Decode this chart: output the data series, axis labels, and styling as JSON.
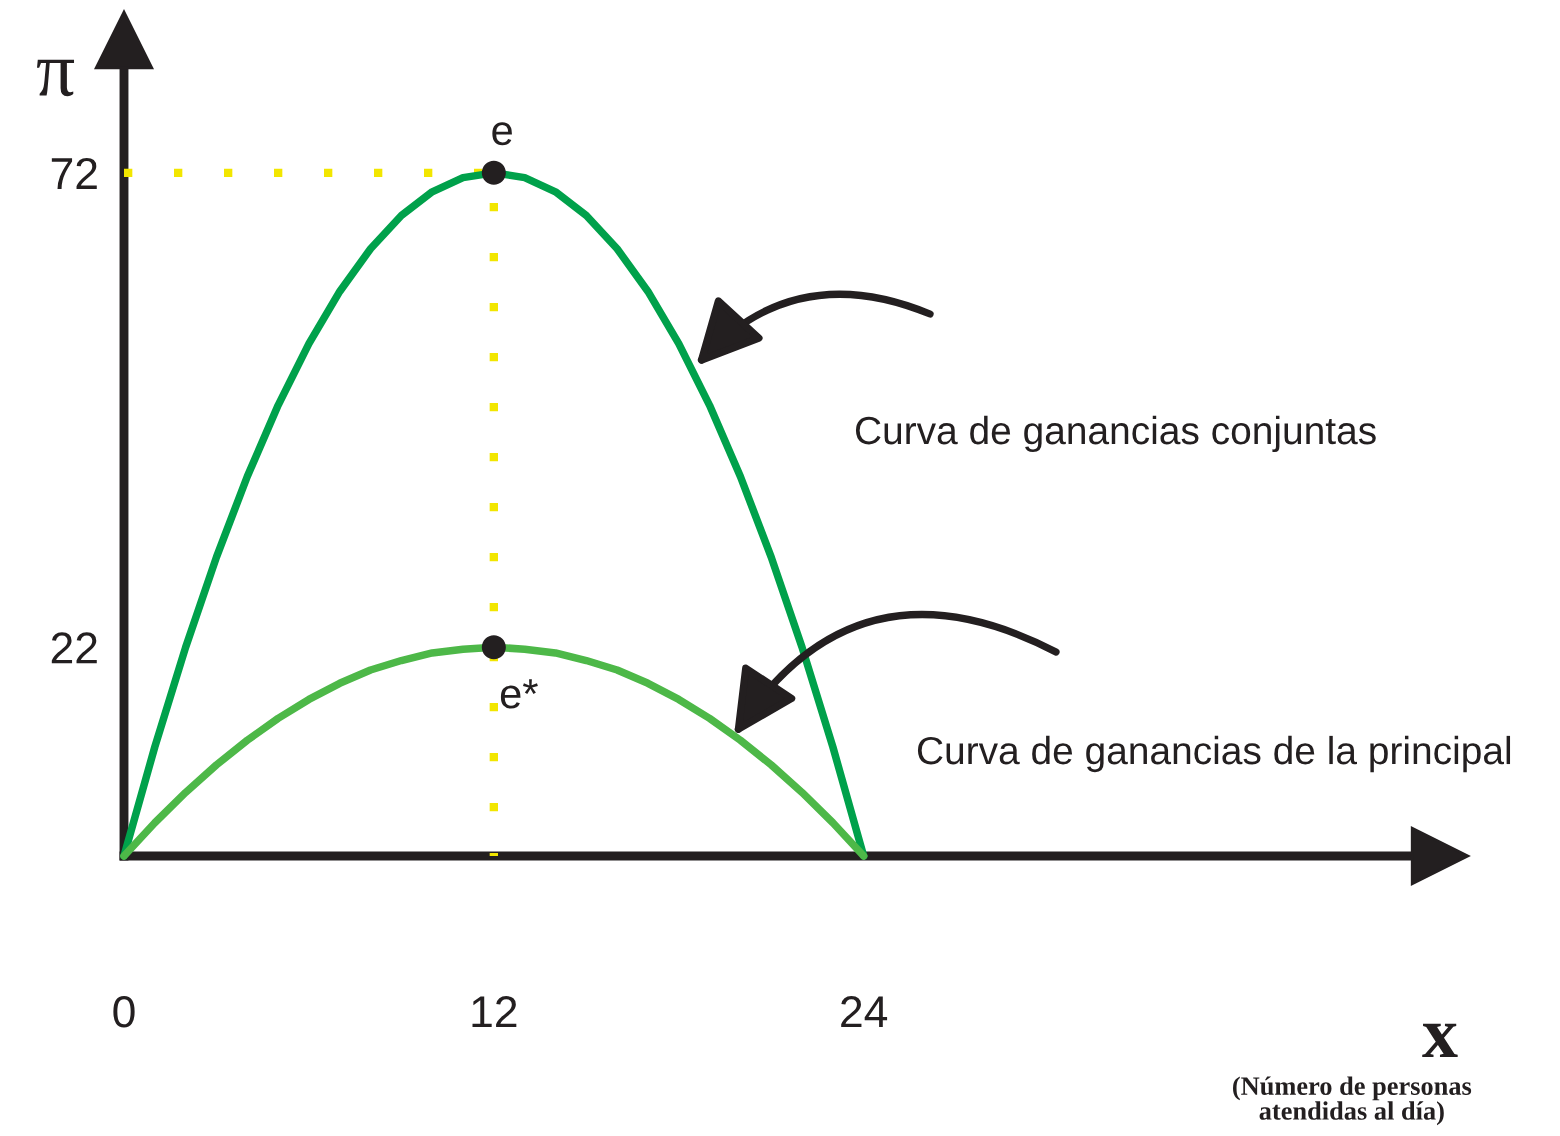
{
  "chart_data": {
    "type": "line",
    "xlabel": "x",
    "ylabel": "π",
    "annotations": [
      {
        "text": "e",
        "x": 12,
        "y": 72
      },
      {
        "text": "e*",
        "x": 12,
        "y": 22
      },
      "Curva de ganancias conjuntas",
      "Curva de ganancias de la principal",
      "(Número de personas\natendidas al día)"
    ],
    "series": [
      {
        "color": "#f2e600",
        "line_style": "dotted",
        "x": [
          0,
          12,
          12
        ],
        "values": [
          72,
          72,
          0
        ]
      },
      {
        "color": "#00a14b",
        "x": [
          0,
          1,
          2,
          3,
          4,
          5,
          6,
          7,
          8,
          9,
          10,
          11,
          12,
          13,
          14,
          15,
          16,
          17,
          18,
          19,
          20,
          21,
          22,
          23,
          24
        ],
        "values": [
          0,
          11.5,
          22,
          31.5,
          40,
          47.5,
          54,
          59.5,
          64,
          67.5,
          70,
          71.5,
          72,
          71.5,
          70,
          67.5,
          64,
          59.5,
          54,
          47.5,
          40,
          31.5,
          22,
          11.5,
          0
        ]
      },
      {
        "color": "#4db848",
        "x": [
          0,
          1,
          2,
          3,
          4,
          5,
          6,
          7,
          8,
          9,
          10,
          11,
          12,
          13,
          14,
          15,
          16,
          17,
          18,
          19,
          20,
          21,
          22,
          23,
          24
        ],
        "values": [
          0,
          3.5,
          6.7,
          9.6,
          12.2,
          14.5,
          16.5,
          18.2,
          19.6,
          20.6,
          21.4,
          21.8,
          22,
          21.8,
          21.4,
          20.6,
          19.6,
          18.2,
          16.5,
          14.5,
          12.2,
          9.6,
          6.7,
          3.5,
          0
        ]
      },
      {
        "type": "scatter",
        "color": "#231f20",
        "marker": "circle",
        "x": [
          12,
          12
        ],
        "values": [
          72,
          22
        ]
      }
    ],
    "xlim": [
      0,
      42.7
    ],
    "ylim": [
      0,
      86
    ],
    "xticks": [
      0,
      12,
      24
    ],
    "yticks": [
      22,
      72
    ]
  }
}
